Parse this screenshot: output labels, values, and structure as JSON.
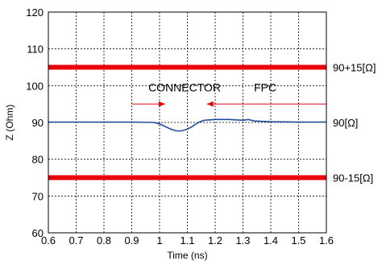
{
  "chart_data": {
    "type": "line",
    "xlabel": "Time (ns)",
    "ylabel": "Z (Ohm)",
    "xlim": [
      0.6,
      1.6
    ],
    "ylim": [
      60,
      120
    ],
    "grid": true,
    "xticks": [
      "0.6",
      "0.7",
      "0.8",
      "0.9",
      "1",
      "1.1",
      "1.2",
      "1.3",
      "1.4",
      "1.5",
      "1.6"
    ],
    "yticks": [
      "60",
      "70",
      "80",
      "90",
      "100",
      "110",
      "120"
    ],
    "colors": {
      "limit": "#e8000b",
      "impedance": "#1f4e9c",
      "arrow": "#e8000b",
      "grid": "#000000"
    },
    "limit_lines": [
      {
        "y": 105,
        "label": "90+15[Ω]"
      },
      {
        "y": 75,
        "label": "90-15[Ω]"
      }
    ],
    "reference": {
      "y": 90,
      "label": "90[Ω]"
    },
    "series": [
      {
        "x": [
          0.6,
          0.7,
          0.8,
          0.9,
          0.98,
          1.0,
          1.02,
          1.04,
          1.06,
          1.08,
          1.1,
          1.12,
          1.14,
          1.16,
          1.18,
          1.2,
          1.25,
          1.3,
          1.32,
          1.34,
          1.4,
          1.5,
          1.6
        ],
        "y": [
          90.1,
          90.1,
          90.1,
          90.1,
          90.0,
          89.6,
          88.9,
          88.2,
          87.7,
          87.7,
          88.2,
          89.0,
          90.0,
          90.6,
          90.7,
          90.8,
          90.8,
          90.6,
          90.8,
          90.4,
          90.2,
          90.1,
          90.1
        ]
      }
    ],
    "annotations": [
      {
        "text": "CONNECTOR",
        "x": 1.09,
        "y": 99.5
      },
      {
        "text": "FPC",
        "x": 1.38,
        "y": 99.5
      }
    ],
    "arrows": [
      {
        "x_from": 0.9,
        "x_to": 1.02,
        "y": 95
      },
      {
        "x_from": 1.6,
        "x_to": 1.17,
        "y": 95
      }
    ]
  }
}
